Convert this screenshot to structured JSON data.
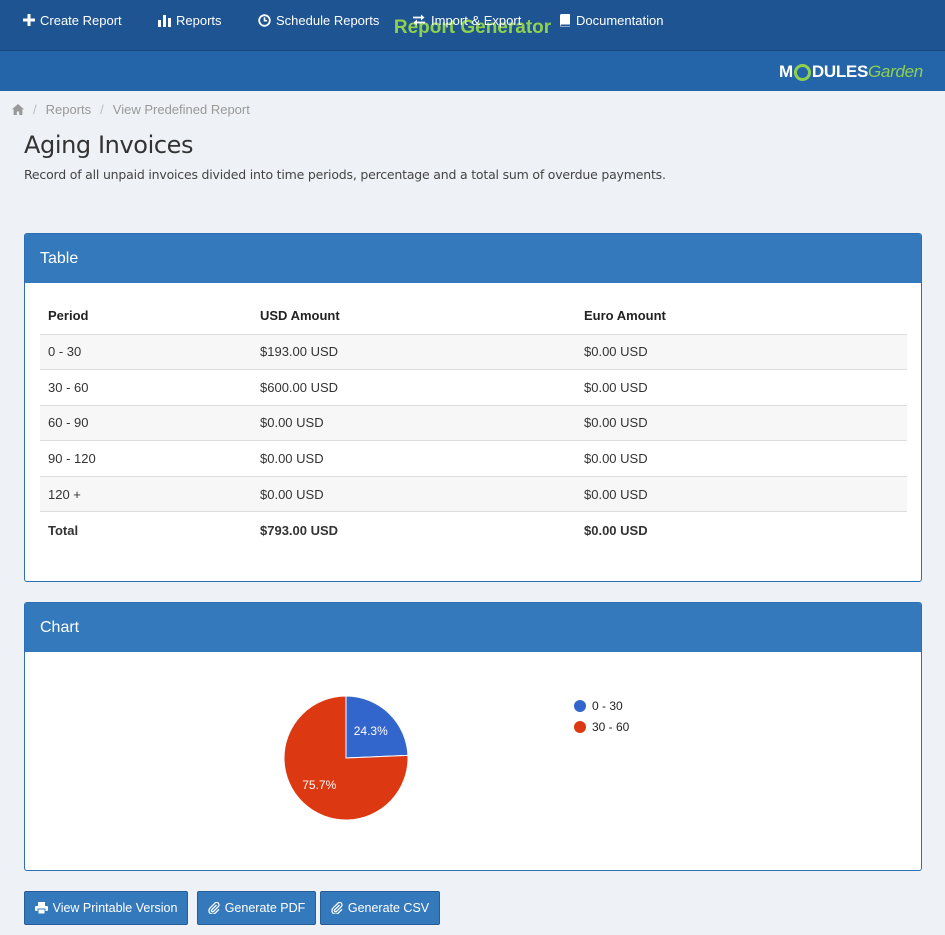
{
  "header": {
    "title": "Report Generator",
    "nav": [
      {
        "label": "Create Report",
        "icon": "plus-icon"
      },
      {
        "label": "Reports",
        "icon": "bar-chart-icon"
      },
      {
        "label": "Schedule Reports",
        "icon": "clock-icon"
      },
      {
        "label": "Import & Export",
        "icon": "exchange-icon"
      },
      {
        "label": "Documentation",
        "icon": "book-icon"
      }
    ],
    "logo": {
      "part1": "M",
      "part2": "DULES",
      "part3": "Garden"
    }
  },
  "breadcrumb": {
    "home_icon": "home-icon",
    "items": [
      "Reports",
      "View Predefined Report"
    ]
  },
  "page": {
    "title": "Aging Invoices",
    "description": "Record of all unpaid invoices divided into time periods, percentage and a total sum of overdue payments."
  },
  "table_panel": {
    "title": "Table",
    "columns": [
      "Period",
      "USD Amount",
      "Euro Amount"
    ],
    "rows": [
      [
        "0 - 30",
        "$193.00 USD",
        "$0.00 USD"
      ],
      [
        "30 - 60",
        "$600.00 USD",
        "$0.00 USD"
      ],
      [
        "60 - 90",
        "$0.00 USD",
        "$0.00 USD"
      ],
      [
        "90 - 120",
        "$0.00 USD",
        "$0.00 USD"
      ],
      [
        "120 +",
        "$0.00 USD",
        "$0.00 USD"
      ]
    ],
    "total": [
      "Total",
      "$793.00 USD",
      "$0.00 USD"
    ]
  },
  "chart_panel": {
    "title": "Chart"
  },
  "chart_data": {
    "type": "pie",
    "categories": [
      "0 - 30",
      "30 - 60"
    ],
    "values": [
      193,
      600
    ],
    "slice_labels": [
      "24.3%",
      "75.7%"
    ],
    "colors": [
      "#3366cc",
      "#dc3912"
    ],
    "legend_position": "right"
  },
  "actions": {
    "printable": "View Printable Version",
    "pdf": "Generate PDF",
    "csv": "Generate CSV"
  },
  "colors": {
    "header_bg": "#1d5491",
    "nav_bg": "#2464a8",
    "accent_green": "#8fd14f",
    "panel_head": "#3479bb"
  }
}
